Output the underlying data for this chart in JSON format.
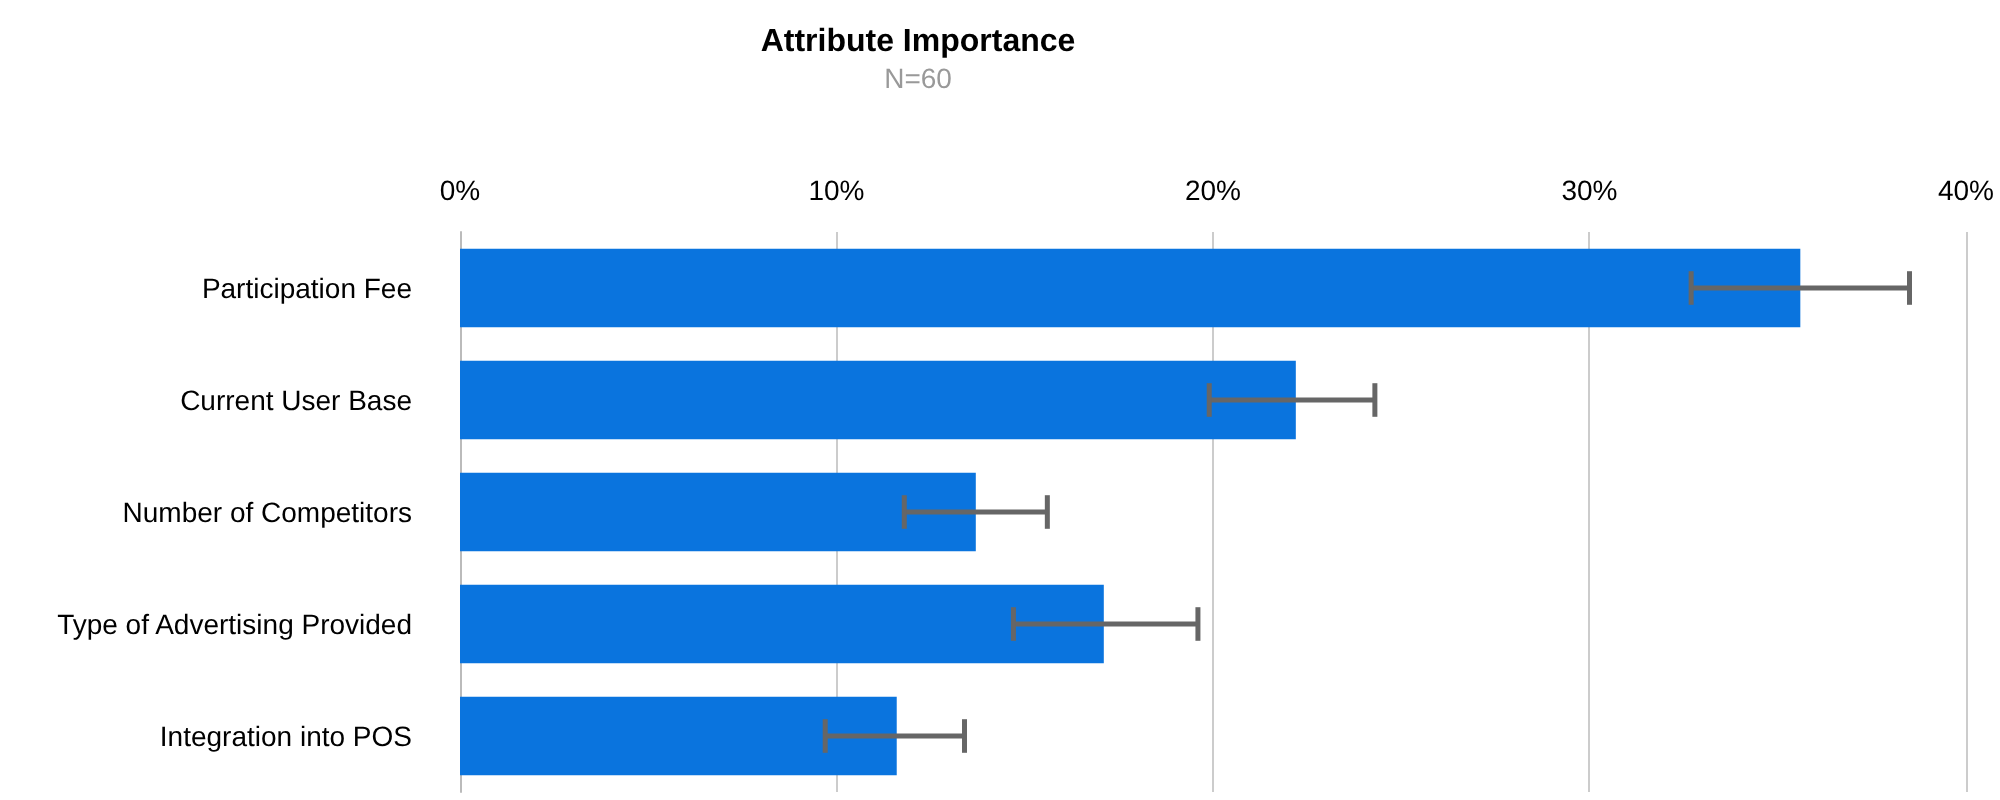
{
  "chart_data": {
    "type": "bar",
    "orientation": "horizontal",
    "title": "Attribute Importance",
    "subtitle": "N=60",
    "categories": [
      "Participation Fee",
      "Current User Base",
      "Number of Competitors",
      "Type of Advertising Provided",
      "Integration into POS"
    ],
    "values": [
      35.6,
      22.2,
      13.7,
      17.1,
      11.6
    ],
    "errors": [
      [
        32.7,
        38.5
      ],
      [
        19.9,
        24.3
      ],
      [
        11.8,
        15.6
      ],
      [
        14.7,
        19.6
      ],
      [
        9.7,
        13.4
      ]
    ],
    "color": "#0a74de",
    "xlim": [
      0,
      40
    ],
    "xticks": [
      {
        "value": 0,
        "label": "0%"
      },
      {
        "value": 10,
        "label": "10%"
      },
      {
        "value": 20,
        "label": "20%"
      },
      {
        "value": 30,
        "label": "30%"
      },
      {
        "value": 40,
        "label": "40%"
      }
    ],
    "grid": "x"
  }
}
